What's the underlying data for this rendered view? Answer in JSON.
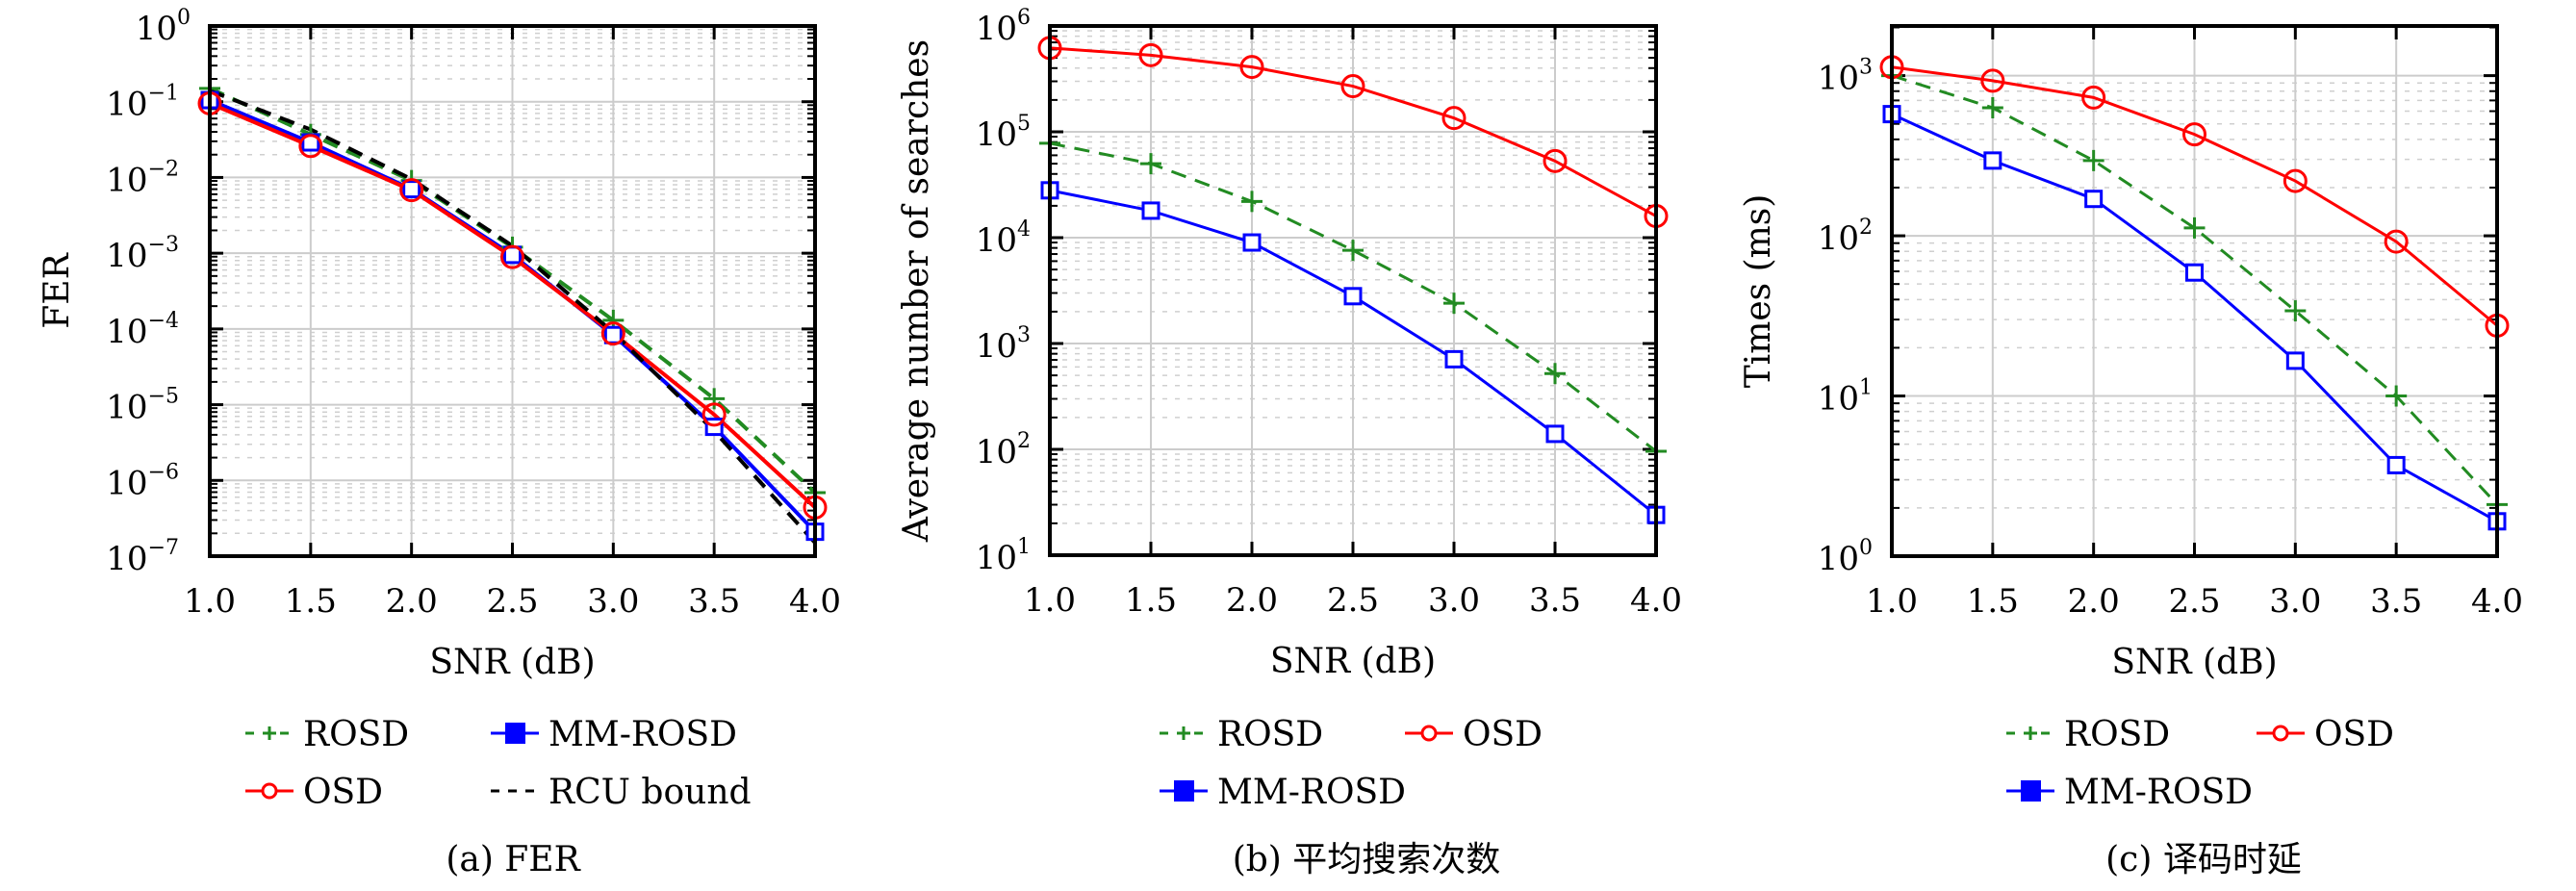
{
  "chart_data": [
    {
      "type": "line",
      "title": "",
      "caption": "(a) FER",
      "xlabel": "SNR (dB)",
      "ylabel": "FER",
      "yscale": "log",
      "xlim": [
        1.0,
        4.0
      ],
      "ylim_exp": [
        -7,
        0
      ],
      "xticks": [
        "1.0",
        "1.5",
        "2.0",
        "2.5",
        "3.0",
        "3.5",
        "4.0"
      ],
      "yticks": [
        {
          "base": "10",
          "exp": "0"
        },
        {
          "base": "10",
          "exp": "−1"
        },
        {
          "base": "10",
          "exp": "−2"
        },
        {
          "base": "10",
          "exp": "−3"
        },
        {
          "base": "10",
          "exp": "−4"
        },
        {
          "base": "10",
          "exp": "−5"
        },
        {
          "base": "10",
          "exp": "−6"
        },
        {
          "base": "10",
          "exp": "−7"
        }
      ],
      "grid": true,
      "legend_placement": "below",
      "x": [
        1.0,
        1.5,
        2.0,
        2.5,
        3.0,
        3.5,
        4.0
      ],
      "series": [
        {
          "name": "ROSD",
          "color": "#228B22",
          "style": "dashed",
          "marker": "plus",
          "values": [
            0.15,
            0.037,
            0.0091,
            0.0012,
            0.00013,
            1.2e-05,
            6.9e-07
          ]
        },
        {
          "name": "MM-ROSD",
          "color": "#0000FF",
          "style": "solid",
          "marker": "square",
          "values": [
            0.105,
            0.029,
            0.007,
            0.00095,
            8.3e-05,
            5.1e-06,
            2.1e-07
          ]
        },
        {
          "name": "OSD",
          "color": "#FF0000",
          "style": "solid",
          "marker": "circle",
          "values": [
            0.095,
            0.026,
            0.0068,
            0.00089,
            8.7e-05,
            7.4e-06,
            4.4e-07
          ]
        },
        {
          "name": "RCU bound",
          "color": "#000000",
          "style": "dashed",
          "marker": "none",
          "values": [
            0.14,
            0.043,
            0.0095,
            0.00125,
            9e-05,
            4.5e-06,
            1.5e-07
          ]
        }
      ],
      "legend_order": [
        0,
        1,
        2,
        3
      ]
    },
    {
      "type": "line",
      "title": "",
      "caption": "(b) 平均搜索次数",
      "xlabel": "SNR (dB)",
      "ylabel": "Average number of searches",
      "yscale": "log",
      "xlim": [
        1.0,
        4.0
      ],
      "ylim_exp": [
        1,
        6
      ],
      "xticks": [
        "1.0",
        "1.5",
        "2.0",
        "2.5",
        "3.0",
        "3.5",
        "4.0"
      ],
      "yticks": [
        {
          "base": "10",
          "exp": "6"
        },
        {
          "base": "10",
          "exp": "5"
        },
        {
          "base": "10",
          "exp": "4"
        },
        {
          "base": "10",
          "exp": "3"
        },
        {
          "base": "10",
          "exp": "2"
        },
        {
          "base": "10",
          "exp": "1"
        }
      ],
      "grid": true,
      "legend_placement": "below",
      "x": [
        1.0,
        1.5,
        2.0,
        2.5,
        3.0,
        3.5,
        4.0
      ],
      "series": [
        {
          "name": "ROSD",
          "color": "#228B22",
          "style": "dashed",
          "marker": "plus",
          "values": [
            78000,
            50000,
            22000,
            7600,
            2400,
            520,
            96
          ]
        },
        {
          "name": "OSD",
          "color": "#FF0000",
          "style": "solid",
          "marker": "circle",
          "values": [
            620000,
            530000,
            410000,
            270000,
            135000,
            53000,
            16000
          ]
        },
        {
          "name": "MM-ROSD",
          "color": "#0000FF",
          "style": "solid",
          "marker": "square",
          "values": [
            28000,
            18000,
            9000,
            2800,
            710,
            140,
            24
          ]
        }
      ],
      "legend_order": [
        0,
        1,
        2
      ]
    },
    {
      "type": "line",
      "title": "",
      "caption": "(c) 译码时延",
      "xlabel": "SNR (dB)",
      "ylabel": "Times (ms)",
      "yscale": "log",
      "xlim": [
        1.0,
        4.0
      ],
      "ylim_exp": [
        0,
        3.31
      ],
      "xticks": [
        "1.0",
        "1.5",
        "2.0",
        "2.5",
        "3.0",
        "3.5",
        "4.0"
      ],
      "yticks": [
        {
          "base": "10",
          "exp": "3"
        },
        {
          "base": "10",
          "exp": "2"
        },
        {
          "base": "10",
          "exp": "1"
        },
        {
          "base": "10",
          "exp": "0"
        }
      ],
      "grid": true,
      "legend_placement": "below",
      "x": [
        1.0,
        1.5,
        2.0,
        2.5,
        3.0,
        3.5,
        4.0
      ],
      "series": [
        {
          "name": "ROSD",
          "color": "#228B22",
          "style": "dashed",
          "marker": "plus",
          "values": [
            1000,
            630,
            295,
            112,
            34,
            10,
            2.1
          ]
        },
        {
          "name": "OSD",
          "color": "#FF0000",
          "style": "solid",
          "marker": "circle",
          "values": [
            1130,
            930,
            730,
            430,
            220,
            92,
            27.5
          ]
        },
        {
          "name": "MM-ROSD",
          "color": "#0000FF",
          "style": "solid",
          "marker": "square",
          "values": [
            575,
            295,
            170,
            59,
            16.6,
            3.7,
            1.65
          ]
        }
      ],
      "legend_order": [
        0,
        1,
        2
      ]
    }
  ]
}
